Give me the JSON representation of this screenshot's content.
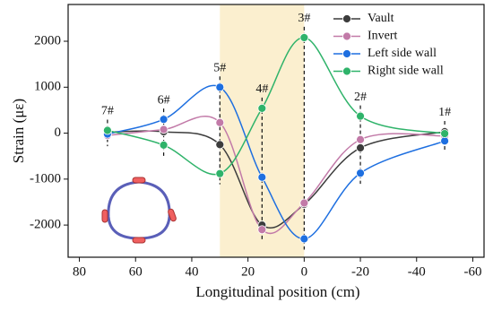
{
  "chart_data": {
    "type": "line",
    "xlabel": "Longitudinal position (cm)",
    "ylabel": "Strain  (με)",
    "x": [
      70,
      50,
      30,
      15,
      0,
      -20,
      -50
    ],
    "series": [
      {
        "name": "Vault",
        "color": "#3c3c3c",
        "values": [
          20,
          30,
          -250,
          -2000,
          -1550,
          -320,
          30
        ]
      },
      {
        "name": "Invert",
        "color": "#c27aa8",
        "values": [
          -50,
          80,
          230,
          -2100,
          -1520,
          -140,
          -60
        ]
      },
      {
        "name": "Left side wall",
        "color": "#1e6fe0",
        "values": [
          -20,
          300,
          1000,
          -960,
          -2300,
          -870,
          -170
        ]
      },
      {
        "name": "Right side wall",
        "color": "#2fb36a",
        "values": [
          60,
          -260,
          -880,
          540,
          2080,
          370,
          -10
        ]
      }
    ],
    "annotations": [
      {
        "text": "7#",
        "x": 70
      },
      {
        "text": "6#",
        "x": 50
      },
      {
        "text": "5#",
        "x": 30
      },
      {
        "text": "4#",
        "x": 15
      },
      {
        "text": "3#",
        "x": 0
      },
      {
        "text": "2#",
        "x": -20
      },
      {
        "text": "1#",
        "x": -50
      }
    ],
    "shaded_region": {
      "x": [
        30,
        0
      ],
      "color": "#fbefcf"
    },
    "xlim": [
      84,
      -64
    ],
    "xticks": [
      80,
      60,
      40,
      20,
      0,
      -20,
      -40,
      -60
    ],
    "ylim": [
      -2700,
      2800
    ],
    "yticks": [
      -2000,
      -1000,
      0,
      1000,
      2000
    ],
    "legend_position": "upper right",
    "grid": false
  }
}
